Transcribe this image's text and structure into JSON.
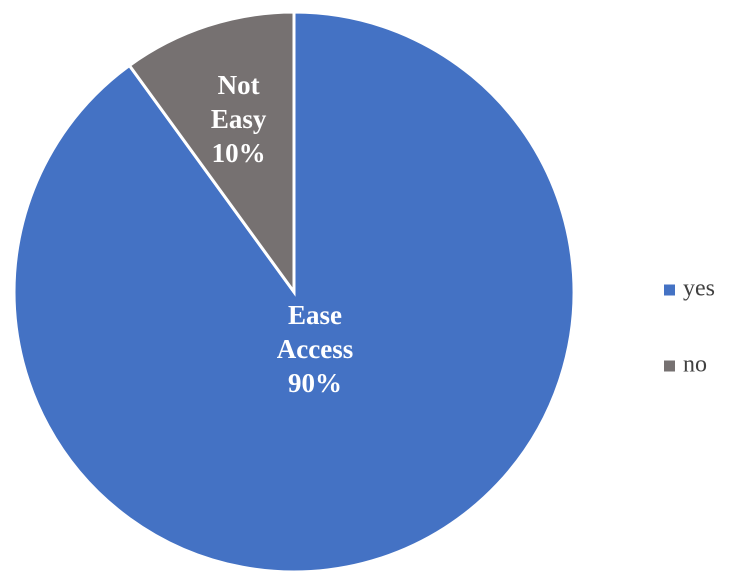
{
  "chart_data": {
    "type": "pie",
    "title": "",
    "slices": [
      {
        "legend": "yes",
        "label_lines": [
          "Ease",
          "Access",
          "90%"
        ],
        "value": 90,
        "color": "#4472C4"
      },
      {
        "legend": "no",
        "label_lines": [
          "Not",
          "Easy",
          "10%"
        ],
        "value": 10,
        "color": "#767171"
      }
    ],
    "start": "12 o'clock",
    "direction": "clockwise",
    "legend_position": "right"
  }
}
